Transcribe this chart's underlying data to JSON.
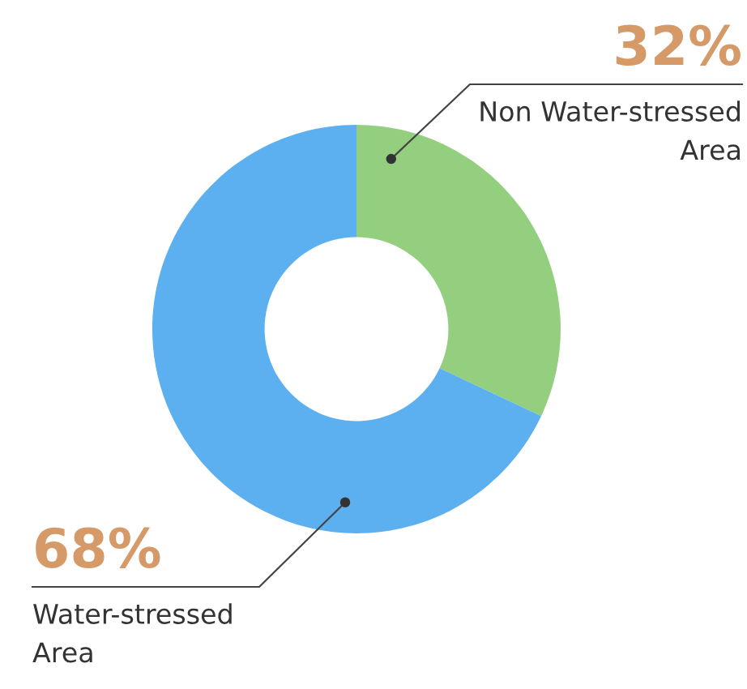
{
  "chart_data": {
    "type": "donut",
    "categories": [
      "Non Water-stressed\nArea",
      "Water-stressed\nArea"
    ],
    "values": [
      32,
      68
    ],
    "colors": [
      "#93cf7e",
      "#5cb0f0"
    ],
    "value_labels": [
      "32%",
      "68%"
    ],
    "legend": false
  }
}
